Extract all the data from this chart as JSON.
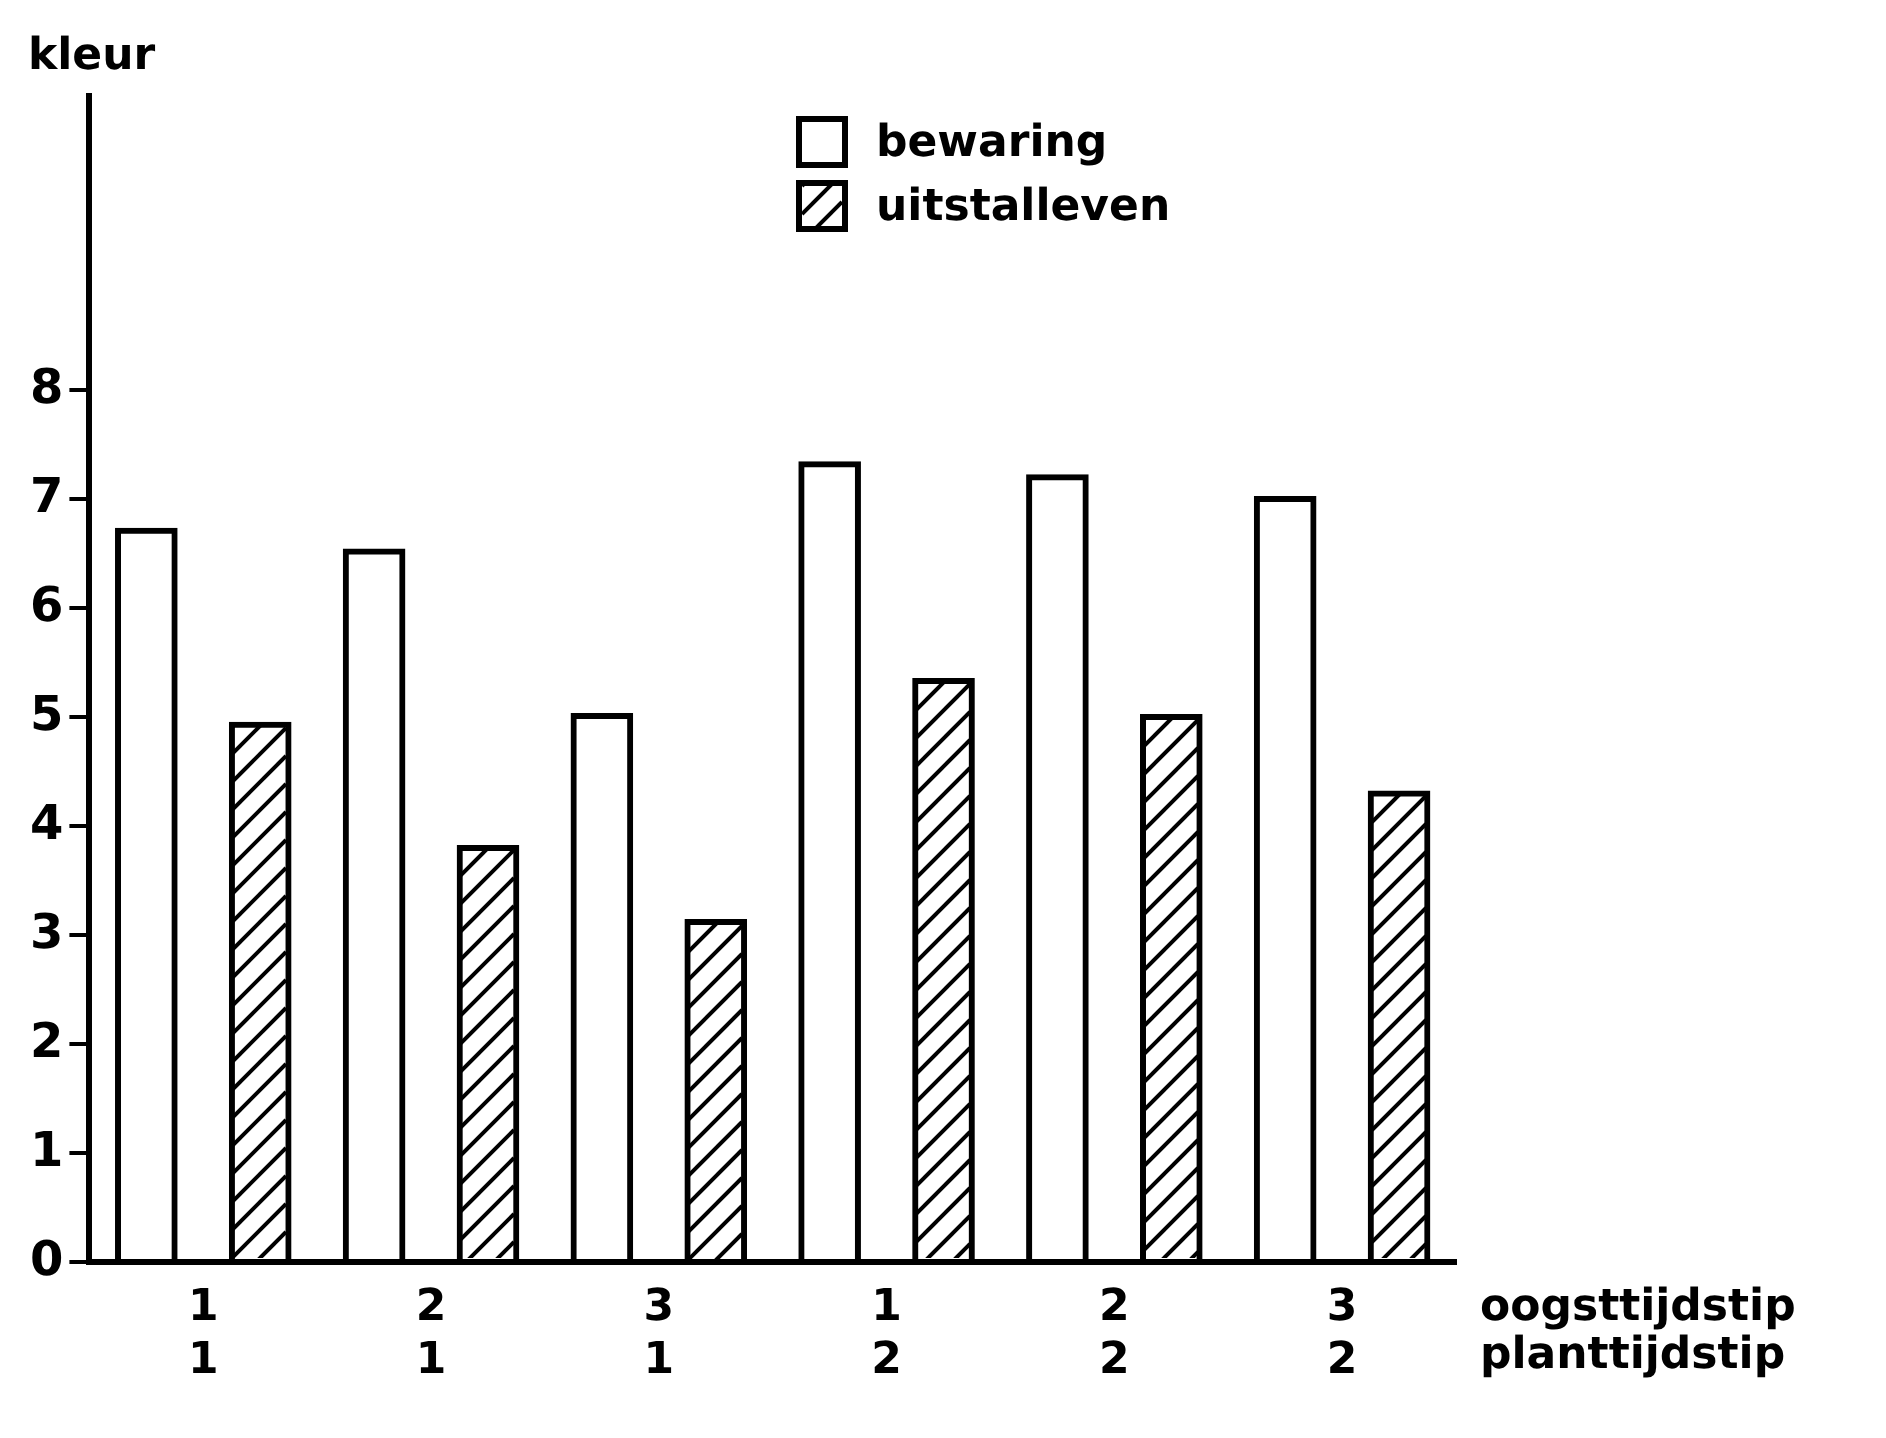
{
  "chart_data": {
    "type": "bar",
    "ylabel": "kleur",
    "xlabel": "oogsttijdstip\nplanttijdstip",
    "categories": [
      "1\n1",
      "2\n1",
      "3\n1",
      "1\n2",
      "2\n2",
      "3\n2"
    ],
    "series": [
      {
        "name": "bewaring",
        "color": "#000000",
        "values": [
          6.74,
          6.55,
          5.04,
          7.35,
          7.23,
          7.03
        ]
      },
      {
        "name": "uitstalleven",
        "color": "#000000",
        "values": [
          4.96,
          3.83,
          3.15,
          5.36,
          5.03,
          4.33
        ]
      }
    ],
    "ylim": [
      0,
      10.7
    ],
    "yticks": [
      0,
      1,
      2,
      3,
      4,
      5,
      6,
      7,
      8
    ],
    "grid": false,
    "legend": "top right"
  }
}
